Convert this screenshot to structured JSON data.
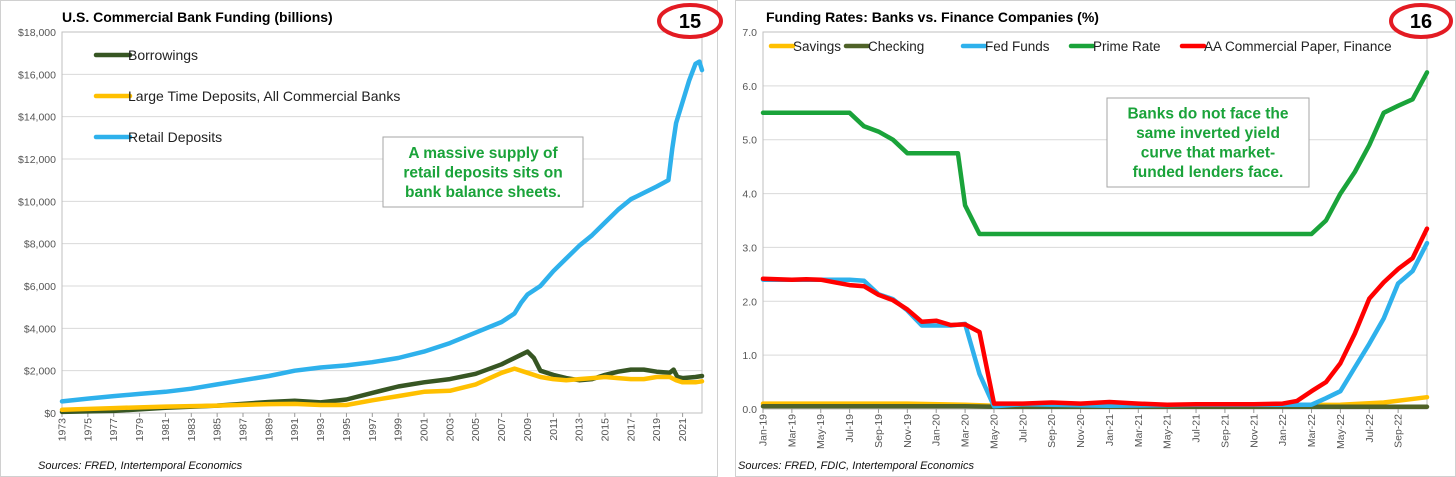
{
  "chart_data": [
    {
      "type": "line",
      "title": "U.S. Commercial Bank Funding (billions)",
      "badge": "15",
      "ylim": [
        0,
        18000
      ],
      "xlim": [
        1973,
        2022.5
      ],
      "y_ticks": [
        "$0",
        "$2,000",
        "$4,000",
        "$6,000",
        "$8,000",
        "$10,000",
        "$12,000",
        "$14,000",
        "$16,000",
        "$18,000"
      ],
      "x_ticks": [
        "1973",
        "1975",
        "1977",
        "1979",
        "1981",
        "1983",
        "1985",
        "1987",
        "1989",
        "1991",
        "1993",
        "1995",
        "1997",
        "1999",
        "2001",
        "2003",
        "2005",
        "2007",
        "2009",
        "2011",
        "2013",
        "2015",
        "2017",
        "2019",
        "2021"
      ],
      "grid": true,
      "legend_position": "top-left",
      "annotation": "A massive supply of retail deposits sits on bank balance sheets.",
      "annotation_lines": [
        "A massive supply of",
        "retail deposits sits on",
        "bank balance sheets."
      ],
      "source": "Sources: FRED, Intertemporal Economics",
      "series": [
        {
          "name": "Borrowings",
          "color": "#375623",
          "x": [
            1973,
            1977,
            1981,
            1985,
            1989,
            1991,
            1993,
            1995,
            1997,
            1999,
            2001,
            2003,
            2005,
            2007,
            2008.5,
            2009,
            2009.5,
            2010,
            2011,
            2012,
            2013,
            2014,
            2015,
            2016,
            2017,
            2018,
            2019,
            2020,
            2020.3,
            2020.6,
            2021,
            2022,
            2022.5
          ],
          "y": [
            50,
            100,
            250,
            350,
            520,
            580,
            500,
            640,
            950,
            1250,
            1450,
            1600,
            1850,
            2300,
            2750,
            2900,
            2600,
            2000,
            1800,
            1650,
            1550,
            1600,
            1800,
            1950,
            2050,
            2050,
            1950,
            1900,
            2050,
            1700,
            1650,
            1700,
            1750
          ]
        },
        {
          "name": "Large Time Deposits, All Commercial Banks",
          "color": "#ffc000",
          "x": [
            1973,
            1977,
            1981,
            1985,
            1989,
            1991,
            1993,
            1995,
            1997,
            1999,
            2001,
            2003,
            2005,
            2007,
            2008,
            2009,
            2010,
            2011,
            2012,
            2013,
            2014,
            2015,
            2016,
            2017,
            2018,
            2019,
            2020,
            2020.5,
            2021,
            2022,
            2022.5
          ],
          "y": [
            150,
            230,
            300,
            350,
            420,
            430,
            380,
            380,
            600,
            800,
            1000,
            1050,
            1350,
            1900,
            2100,
            1900,
            1700,
            1600,
            1550,
            1600,
            1650,
            1700,
            1650,
            1600,
            1600,
            1700,
            1700,
            1550,
            1450,
            1450,
            1500
          ]
        },
        {
          "name": "Retail Deposits",
          "color": "#2eb1ec",
          "x": [
            1973,
            1975,
            1977,
            1979,
            1981,
            1983,
            1985,
            1987,
            1989,
            1991,
            1993,
            1995,
            1997,
            1999,
            2001,
            2003,
            2005,
            2007,
            2008,
            2008.5,
            2009,
            2010,
            2011,
            2012,
            2013,
            2014,
            2015,
            2016,
            2017,
            2018,
            2019,
            2019.9,
            2020.2,
            2020.5,
            2021,
            2021.5,
            2022,
            2022.3,
            2022.5
          ],
          "y": [
            550,
            680,
            800,
            900,
            1000,
            1150,
            1350,
            1550,
            1750,
            2000,
            2150,
            2250,
            2400,
            2600,
            2900,
            3300,
            3800,
            4300,
            4700,
            5200,
            5600,
            6000,
            6700,
            7300,
            7900,
            8400,
            9000,
            9600,
            10100,
            10400,
            10700,
            11000,
            12500,
            13700,
            14700,
            15700,
            16500,
            16600,
            16200
          ]
        }
      ]
    },
    {
      "type": "line",
      "title": "Funding Rates: Banks vs. Finance Companies (%)",
      "badge": "16",
      "ylim": [
        0,
        7
      ],
      "xlim": [
        0,
        46
      ],
      "y_ticks": [
        "0.0",
        "1.0",
        "2.0",
        "3.0",
        "4.0",
        "5.0",
        "6.0",
        "7.0"
      ],
      "x_ticks": [
        "Jan-19",
        "Mar-19",
        "May-19",
        "Jul-19",
        "Sep-19",
        "Nov-19",
        "Jan-20",
        "Mar-20",
        "May-20",
        "Jul-20",
        "Sep-20",
        "Nov-20",
        "Jan-21",
        "Mar-21",
        "May-21",
        "Jul-21",
        "Sep-21",
        "Nov-21",
        "Jan-22",
        "Mar-22",
        "May-22",
        "Jul-22",
        "Sep-22"
      ],
      "grid": true,
      "legend_position": "top",
      "annotation": "Banks do not face the same inverted yield curve that market-funded lenders face.",
      "annotation_lines": [
        "Banks do not face the",
        "same inverted yield",
        "curve that market-",
        "funded lenders face."
      ],
      "source": "Sources: FRED, FDIC, Intertemporal Economics",
      "series": [
        {
          "name": "Savings",
          "color": "#ffc000",
          "x": [
            0,
            10,
            14,
            16,
            40,
            43,
            46
          ],
          "y": [
            0.1,
            0.1,
            0.08,
            0.06,
            0.08,
            0.12,
            0.22
          ]
        },
        {
          "name": "Checking",
          "color": "#4f6228",
          "x": [
            0,
            14,
            16,
            46
          ],
          "y": [
            0.05,
            0.05,
            0.04,
            0.04
          ]
        },
        {
          "name": "Fed Funds",
          "color": "#2eb1ec",
          "x": [
            0,
            4,
            6,
            7,
            8,
            9,
            10,
            11,
            12,
            13,
            14,
            15,
            16,
            18,
            24,
            30,
            36,
            38,
            39,
            40,
            41,
            42,
            43,
            44,
            45,
            46
          ],
          "y": [
            2.4,
            2.4,
            2.4,
            2.38,
            2.13,
            2.04,
            1.83,
            1.55,
            1.55,
            1.55,
            1.58,
            0.65,
            0.05,
            0.09,
            0.06,
            0.08,
            0.08,
            0.08,
            0.2,
            0.33,
            0.77,
            1.21,
            1.68,
            2.33,
            2.56,
            3.08
          ]
        },
        {
          "name": "Prime Rate",
          "color": "#1aa33a",
          "x": [
            0,
            6,
            7,
            8,
            9,
            10,
            11,
            12,
            13,
            13.5,
            14,
            15,
            38,
            39,
            40,
            41,
            42,
            43,
            44,
            45,
            46
          ],
          "y": [
            5.5,
            5.5,
            5.25,
            5.15,
            5,
            4.75,
            4.75,
            4.75,
            4.75,
            4.75,
            3.78,
            3.25,
            3.25,
            3.5,
            4,
            4.4,
            4.9,
            5.5,
            5.63,
            5.75,
            6.25
          ]
        },
        {
          "name": "AA Commercial Paper, Finance",
          "color": "#ff0000",
          "x": [
            0,
            2,
            3,
            4,
            5,
            6,
            7,
            8,
            9,
            10,
            11,
            12,
            13,
            14,
            15,
            16,
            17,
            18,
            20,
            22,
            24,
            26,
            28,
            30,
            32,
            34,
            36,
            37,
            38,
            39,
            40,
            41,
            42,
            43,
            44,
            45,
            46
          ],
          "y": [
            2.42,
            2.4,
            2.41,
            2.4,
            2.35,
            2.3,
            2.28,
            2.12,
            2.02,
            1.85,
            1.62,
            1.64,
            1.56,
            1.57,
            1.43,
            0.1,
            0.1,
            0.1,
            0.12,
            0.1,
            0.13,
            0.1,
            0.08,
            0.09,
            0.09,
            0.09,
            0.1,
            0.15,
            0.33,
            0.5,
            0.85,
            1.4,
            2.05,
            2.35,
            2.6,
            2.8,
            3.35
          ]
        }
      ]
    }
  ]
}
